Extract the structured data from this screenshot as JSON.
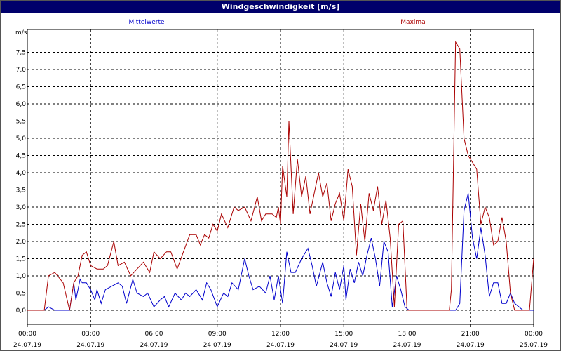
{
  "window": {
    "title": "Windgeschwindigkeit [m/s]"
  },
  "chart_data": {
    "type": "line",
    "title": "Windgeschwindigkeit [m/s]",
    "ylabel": "m/s",
    "ylim": [
      0,
      8
    ],
    "yticks": [
      "0,0",
      "0,5",
      "1,0",
      "1,5",
      "2,0",
      "2,5",
      "3,0",
      "3,5",
      "4,0",
      "4,5",
      "5,0",
      "5,5",
      "6,0",
      "6,5",
      "7,0",
      "7,5"
    ],
    "xlim": [
      0,
      24
    ],
    "xticks": [
      {
        "time": "00:00",
        "date": "24.07.19"
      },
      {
        "time": "03:00",
        "date": "24.07.19"
      },
      {
        "time": "06:00",
        "date": "24.07.19"
      },
      {
        "time": "09:00",
        "date": "24.07.19"
      },
      {
        "time": "12:00",
        "date": "24.07.19"
      },
      {
        "time": "15:00",
        "date": "24.07.19"
      },
      {
        "time": "18:00",
        "date": "24.07.19"
      },
      {
        "time": "21:00",
        "date": "24.07.19"
      },
      {
        "time": "00:00",
        "date": "25.07.19"
      }
    ],
    "grid": true,
    "series": [
      {
        "name": "Mittelwerte",
        "color": "#0000cc",
        "x": [
          0,
          0.8,
          1.0,
          1.3,
          1.7,
          2.0,
          2.2,
          2.3,
          2.5,
          2.6,
          2.8,
          3.0,
          3.2,
          3.3,
          3.5,
          3.7,
          4.0,
          4.3,
          4.5,
          4.7,
          5.0,
          5.2,
          5.5,
          5.7,
          6.0,
          6.3,
          6.5,
          6.7,
          7.0,
          7.3,
          7.5,
          7.7,
          8.0,
          8.3,
          8.5,
          8.7,
          9.0,
          9.3,
          9.5,
          9.7,
          10.0,
          10.3,
          10.5,
          10.7,
          11.0,
          11.3,
          11.5,
          11.7,
          11.9,
          12.1,
          12.3,
          12.5,
          12.7,
          13.0,
          13.3,
          13.5,
          13.7,
          14.0,
          14.2,
          14.4,
          14.6,
          14.8,
          15.0,
          15.1,
          15.3,
          15.5,
          15.7,
          15.9,
          16.1,
          16.3,
          16.5,
          16.7,
          16.9,
          17.1,
          17.3,
          17.5,
          17.7,
          17.9,
          18.1,
          18.5,
          19.0,
          19.5,
          20.0,
          20.3,
          20.5,
          20.7,
          20.9,
          21.1,
          21.3,
          21.5,
          21.7,
          21.9,
          22.1,
          22.3,
          22.5,
          22.7,
          22.9,
          23.1,
          23.5,
          24.0
        ],
        "y": [
          0,
          0,
          0.1,
          0,
          0,
          0,
          0.8,
          0.3,
          0.9,
          0.8,
          0.8,
          0.6,
          0.3,
          0.6,
          0.2,
          0.6,
          0.7,
          0.8,
          0.7,
          0.2,
          0.9,
          0.5,
          0.4,
          0.5,
          0.1,
          0.3,
          0.4,
          0.1,
          0.5,
          0.3,
          0.5,
          0.4,
          0.6,
          0.3,
          0.8,
          0.6,
          0.1,
          0.5,
          0.4,
          0.8,
          0.6,
          1.5,
          1.0,
          0.6,
          0.7,
          0.5,
          1.0,
          0.3,
          1.0,
          0.2,
          1.7,
          1.1,
          1.1,
          1.5,
          1.8,
          1.3,
          0.7,
          1.4,
          0.8,
          0.4,
          1.1,
          0.6,
          1.3,
          0.3,
          1.2,
          0.8,
          1.4,
          1.0,
          1.6,
          2.1,
          1.5,
          0.7,
          2.0,
          1.7,
          0.1,
          1.0,
          0.6,
          0.1,
          0,
          0,
          0,
          0,
          0,
          0,
          0.2,
          2.9,
          3.4,
          2.1,
          1.5,
          2.4,
          1.6,
          0.4,
          0.8,
          0.8,
          0.2,
          0.2,
          0.5,
          0.2,
          0,
          0
        ]
      },
      {
        "name": "Maxima",
        "color": "#aa0000",
        "x": [
          0,
          0.8,
          1.0,
          1.3,
          1.7,
          2.0,
          2.2,
          2.4,
          2.6,
          2.8,
          3.0,
          3.3,
          3.6,
          3.8,
          4.1,
          4.3,
          4.6,
          4.9,
          5.2,
          5.5,
          5.8,
          6.0,
          6.3,
          6.6,
          6.8,
          7.1,
          7.4,
          7.7,
          8.0,
          8.2,
          8.4,
          8.6,
          8.8,
          9.0,
          9.2,
          9.5,
          9.8,
          10.0,
          10.3,
          10.6,
          10.9,
          11.1,
          11.3,
          11.6,
          11.8,
          11.9,
          12.0,
          12.1,
          12.3,
          12.4,
          12.6,
          12.8,
          13.0,
          13.2,
          13.4,
          13.6,
          13.8,
          14.0,
          14.2,
          14.4,
          14.6,
          14.8,
          15.0,
          15.2,
          15.4,
          15.6,
          15.8,
          16.0,
          16.2,
          16.4,
          16.6,
          16.8,
          17.0,
          17.2,
          17.4,
          17.6,
          17.8,
          18.0,
          18.5,
          19.0,
          19.5,
          20.0,
          20.1,
          20.3,
          20.5,
          20.7,
          20.9,
          21.1,
          21.3,
          21.5,
          21.7,
          21.9,
          22.1,
          22.3,
          22.5,
          22.7,
          22.9,
          23.1,
          23.5,
          23.8,
          24.0
        ],
        "y": [
          0,
          0,
          1.0,
          1.1,
          0.8,
          0,
          0.8,
          1.0,
          1.6,
          1.7,
          1.3,
          1.2,
          1.2,
          1.3,
          2.0,
          1.3,
          1.4,
          1.0,
          1.2,
          1.4,
          1.1,
          1.7,
          1.5,
          1.7,
          1.7,
          1.2,
          1.7,
          2.2,
          2.2,
          1.9,
          2.2,
          2.1,
          2.5,
          2.3,
          2.8,
          2.4,
          3.0,
          2.9,
          3.0,
          2.6,
          3.3,
          2.6,
          2.8,
          2.8,
          2.7,
          3.0,
          2.5,
          4.2,
          3.3,
          5.5,
          2.8,
          4.4,
          3.3,
          3.9,
          2.8,
          3.4,
          4.0,
          3.3,
          3.7,
          2.6,
          3.1,
          3.4,
          2.6,
          4.1,
          3.6,
          1.6,
          3.1,
          2.0,
          3.4,
          2.9,
          3.6,
          2.5,
          3.2,
          2.1,
          0.1,
          2.5,
          2.6,
          0,
          0,
          0,
          0,
          0,
          0.6,
          7.8,
          7.6,
          5.0,
          4.5,
          4.3,
          4.1,
          2.5,
          3.0,
          2.7,
          1.9,
          2.0,
          2.7,
          2.0,
          0.5,
          0,
          0,
          0,
          1.5
        ]
      }
    ]
  }
}
